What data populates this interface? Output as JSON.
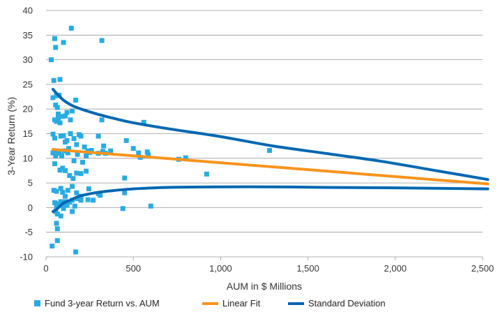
{
  "chart_data": {
    "type": "scatter",
    "title": "",
    "xlabel": "AUM in $ Millions",
    "ylabel": "3-Year Return (%)",
    "xlim": [
      0,
      2500
    ],
    "ylim": [
      -10,
      40
    ],
    "x_ticks": [
      0,
      500,
      1000,
      1500,
      2000,
      2500
    ],
    "x_tick_labels": [
      "0",
      "500",
      "1,000",
      "1,500",
      "2,000",
      "2,500"
    ],
    "y_ticks": [
      -10,
      -5,
      0,
      5,
      10,
      15,
      20,
      25,
      30,
      35,
      40
    ],
    "y_tick_labels": [
      "-10",
      "-5",
      "0",
      "5",
      "10",
      "15",
      "20",
      "25",
      "30",
      "35",
      "40"
    ],
    "grid": "horizontal",
    "legend_position": "bottom",
    "series": [
      {
        "name": "Fund 3-year Return vs. AUM",
        "kind": "scatter",
        "color": "#29abe2",
        "points": [
          [
            30,
            30
          ],
          [
            45,
            25.8
          ],
          [
            50,
            34.3
          ],
          [
            55,
            32.5
          ],
          [
            100,
            33.5
          ],
          [
            145,
            36.4
          ],
          [
            320,
            33.9
          ],
          [
            60,
            22.7
          ],
          [
            75,
            22.8
          ],
          [
            80,
            26
          ],
          [
            40,
            22.3
          ],
          [
            70,
            19
          ],
          [
            95,
            18.5
          ],
          [
            120,
            19.3
          ],
          [
            150,
            19.6
          ],
          [
            170,
            21.8
          ],
          [
            55,
            20.8
          ],
          [
            65,
            20.3
          ],
          [
            50,
            17.8
          ],
          [
            60,
            17.5
          ],
          [
            70,
            18.2
          ],
          [
            80,
            17.2
          ],
          [
            110,
            18.6
          ],
          [
            140,
            17.8
          ],
          [
            190,
            14.8
          ],
          [
            40,
            14.9
          ],
          [
            50,
            14.1
          ],
          [
            85,
            14.5
          ],
          [
            100,
            14.6
          ],
          [
            110,
            13.3
          ],
          [
            120,
            13.6
          ],
          [
            130,
            12
          ],
          [
            140,
            15
          ],
          [
            160,
            14
          ],
          [
            175,
            12.8
          ],
          [
            200,
            14.5
          ],
          [
            220,
            12.3
          ],
          [
            240,
            11.5
          ],
          [
            260,
            11.6
          ],
          [
            300,
            14.5
          ],
          [
            330,
            12.5
          ],
          [
            340,
            11
          ],
          [
            370,
            11.5
          ],
          [
            320,
            17.8
          ],
          [
            460,
            13.6
          ],
          [
            500,
            12
          ],
          [
            560,
            17.3
          ],
          [
            530,
            11.1
          ],
          [
            580,
            11.3
          ],
          [
            585,
            10.7
          ],
          [
            760,
            9.8
          ],
          [
            800,
            10.1
          ],
          [
            1280,
            11.6
          ],
          [
            40,
            11.1
          ],
          [
            55,
            10.5
          ],
          [
            65,
            11.5
          ],
          [
            75,
            11
          ],
          [
            90,
            10.5
          ],
          [
            105,
            11.5
          ],
          [
            125,
            11.1
          ],
          [
            160,
            9.5
          ],
          [
            180,
            10.8
          ],
          [
            210,
            9.2
          ],
          [
            230,
            10.5
          ],
          [
            250,
            11.2
          ],
          [
            300,
            11
          ],
          [
            325,
            11.4
          ],
          [
            540,
            10.2
          ],
          [
            50,
            8.9
          ],
          [
            80,
            7.6
          ],
          [
            95,
            8
          ],
          [
            110,
            7.5
          ],
          [
            135,
            6.5
          ],
          [
            155,
            5.9
          ],
          [
            175,
            7
          ],
          [
            200,
            6.9
          ],
          [
            230,
            7.4
          ],
          [
            920,
            6.8
          ],
          [
            450,
            6
          ],
          [
            45,
            3.5
          ],
          [
            60,
            3.3
          ],
          [
            85,
            3.9
          ],
          [
            95,
            3.1
          ],
          [
            110,
            2.3
          ],
          [
            125,
            3.5
          ],
          [
            150,
            4.3
          ],
          [
            175,
            3
          ],
          [
            200,
            2.3
          ],
          [
            245,
            3.8
          ],
          [
            310,
            2.5
          ],
          [
            450,
            3
          ],
          [
            50,
            1
          ],
          [
            60,
            0.1
          ],
          [
            75,
            0.8
          ],
          [
            85,
            1.2
          ],
          [
            95,
            0.6
          ],
          [
            110,
            1.2
          ],
          [
            120,
            0.5
          ],
          [
            135,
            1.1
          ],
          [
            150,
            1.5
          ],
          [
            165,
            0.3
          ],
          [
            180,
            1.8
          ],
          [
            200,
            1.5
          ],
          [
            240,
            1.6
          ],
          [
            270,
            1.5
          ],
          [
            300,
            2.8
          ],
          [
            600,
            0.3
          ],
          [
            440,
            -0.2
          ],
          [
            55,
            -0.8
          ],
          [
            65,
            -1.3
          ],
          [
            85,
            -1.7
          ],
          [
            100,
            -0.2
          ],
          [
            150,
            -0.8
          ],
          [
            60,
            -3.2
          ],
          [
            65,
            -4.3
          ],
          [
            35,
            -7.8
          ],
          [
            65,
            -6.7
          ],
          [
            170,
            -9
          ]
        ]
      },
      {
        "name": "Linear Fit",
        "kind": "line",
        "color": "#f7941d",
        "points": [
          [
            40,
            11.8
          ],
          [
            2530,
            4.8
          ]
        ]
      },
      {
        "name": "Standard Deviation",
        "kind": "line",
        "color": "#0067b1",
        "upper_points": [
          [
            40,
            24
          ],
          [
            60,
            23.2
          ],
          [
            100,
            21.8
          ],
          [
            150,
            20.7
          ],
          [
            200,
            20
          ],
          [
            300,
            18.9
          ],
          [
            400,
            18
          ],
          [
            500,
            17.2
          ],
          [
            700,
            16
          ],
          [
            1000,
            14.4
          ],
          [
            1300,
            12.5
          ],
          [
            1600,
            11
          ],
          [
            1900,
            9.5
          ],
          [
            2200,
            7.7
          ],
          [
            2530,
            5.7
          ]
        ],
        "lower_points": [
          [
            40,
            -0.8
          ],
          [
            60,
            -0.4
          ],
          [
            80,
            0.3
          ],
          [
            100,
            0.9
          ],
          [
            150,
            1.7
          ],
          [
            200,
            2.4
          ],
          [
            300,
            3.1
          ],
          [
            400,
            3.5
          ],
          [
            500,
            3.8
          ],
          [
            700,
            4.1
          ],
          [
            1000,
            4.2
          ],
          [
            1300,
            4.2
          ],
          [
            1600,
            4.1
          ],
          [
            2000,
            4
          ],
          [
            2530,
            3.8
          ]
        ]
      }
    ]
  }
}
